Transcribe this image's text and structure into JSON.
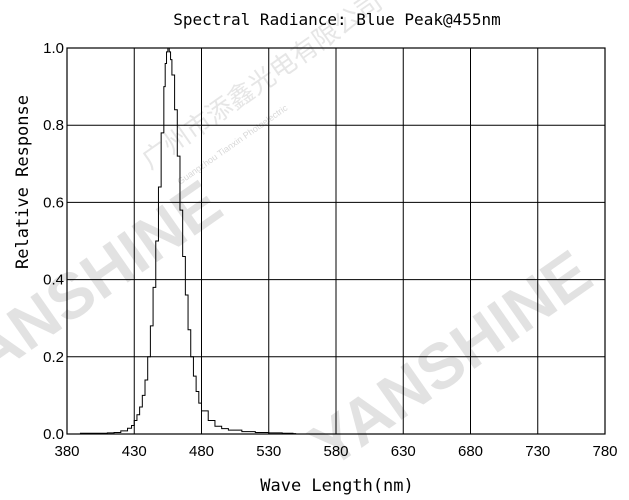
{
  "chart_data": {
    "type": "line",
    "title": "Spectral Radiance: Blue Peak@455nm",
    "xlabel": "Wave Length(nm)",
    "ylabel": "Relative Response",
    "xlim": [
      380,
      780
    ],
    "ylim": [
      0,
      1.0
    ],
    "x_ticks": [
      380,
      430,
      480,
      530,
      580,
      630,
      680,
      730,
      780
    ],
    "y_ticks": [
      "0.0",
      "0.2",
      "0.4",
      "0.6",
      "0.8",
      "1.0"
    ],
    "grid": true,
    "series": [
      {
        "points": [
          [
            380,
            0.0
          ],
          [
            388,
            0.0
          ],
          [
            390,
            0.002
          ],
          [
            400,
            0.002
          ],
          [
            410,
            0.003
          ],
          [
            415,
            0.004
          ],
          [
            420,
            0.008
          ],
          [
            425,
            0.015
          ],
          [
            428,
            0.022
          ],
          [
            430,
            0.035
          ],
          [
            432,
            0.05
          ],
          [
            434,
            0.07
          ],
          [
            436,
            0.1
          ],
          [
            438,
            0.14
          ],
          [
            440,
            0.2
          ],
          [
            442,
            0.28
          ],
          [
            444,
            0.38
          ],
          [
            446,
            0.5
          ],
          [
            448,
            0.64
          ],
          [
            450,
            0.78
          ],
          [
            452,
            0.9
          ],
          [
            453,
            0.96
          ],
          [
            454,
            0.99
          ],
          [
            455,
            1.0
          ],
          [
            456,
            0.99
          ],
          [
            457,
            0.97
          ],
          [
            458,
            0.93
          ],
          [
            460,
            0.84
          ],
          [
            462,
            0.72
          ],
          [
            464,
            0.58
          ],
          [
            466,
            0.46
          ],
          [
            468,
            0.36
          ],
          [
            470,
            0.27
          ],
          [
            472,
            0.2
          ],
          [
            474,
            0.15
          ],
          [
            476,
            0.11
          ],
          [
            478,
            0.08
          ],
          [
            480,
            0.06
          ],
          [
            485,
            0.035
          ],
          [
            490,
            0.02
          ],
          [
            495,
            0.014
          ],
          [
            500,
            0.01
          ],
          [
            510,
            0.006
          ],
          [
            520,
            0.004
          ],
          [
            530,
            0.003
          ],
          [
            540,
            0.002
          ],
          [
            548,
            0.001
          ],
          [
            550,
            0.0
          ],
          [
            780,
            0.0
          ]
        ]
      }
    ]
  },
  "watermark": {
    "brand": "YANSHINE",
    "chinese": "广州市添鑫光电有限公司",
    "pinyin": "Guangzhou Tianxin Photoelectric"
  }
}
